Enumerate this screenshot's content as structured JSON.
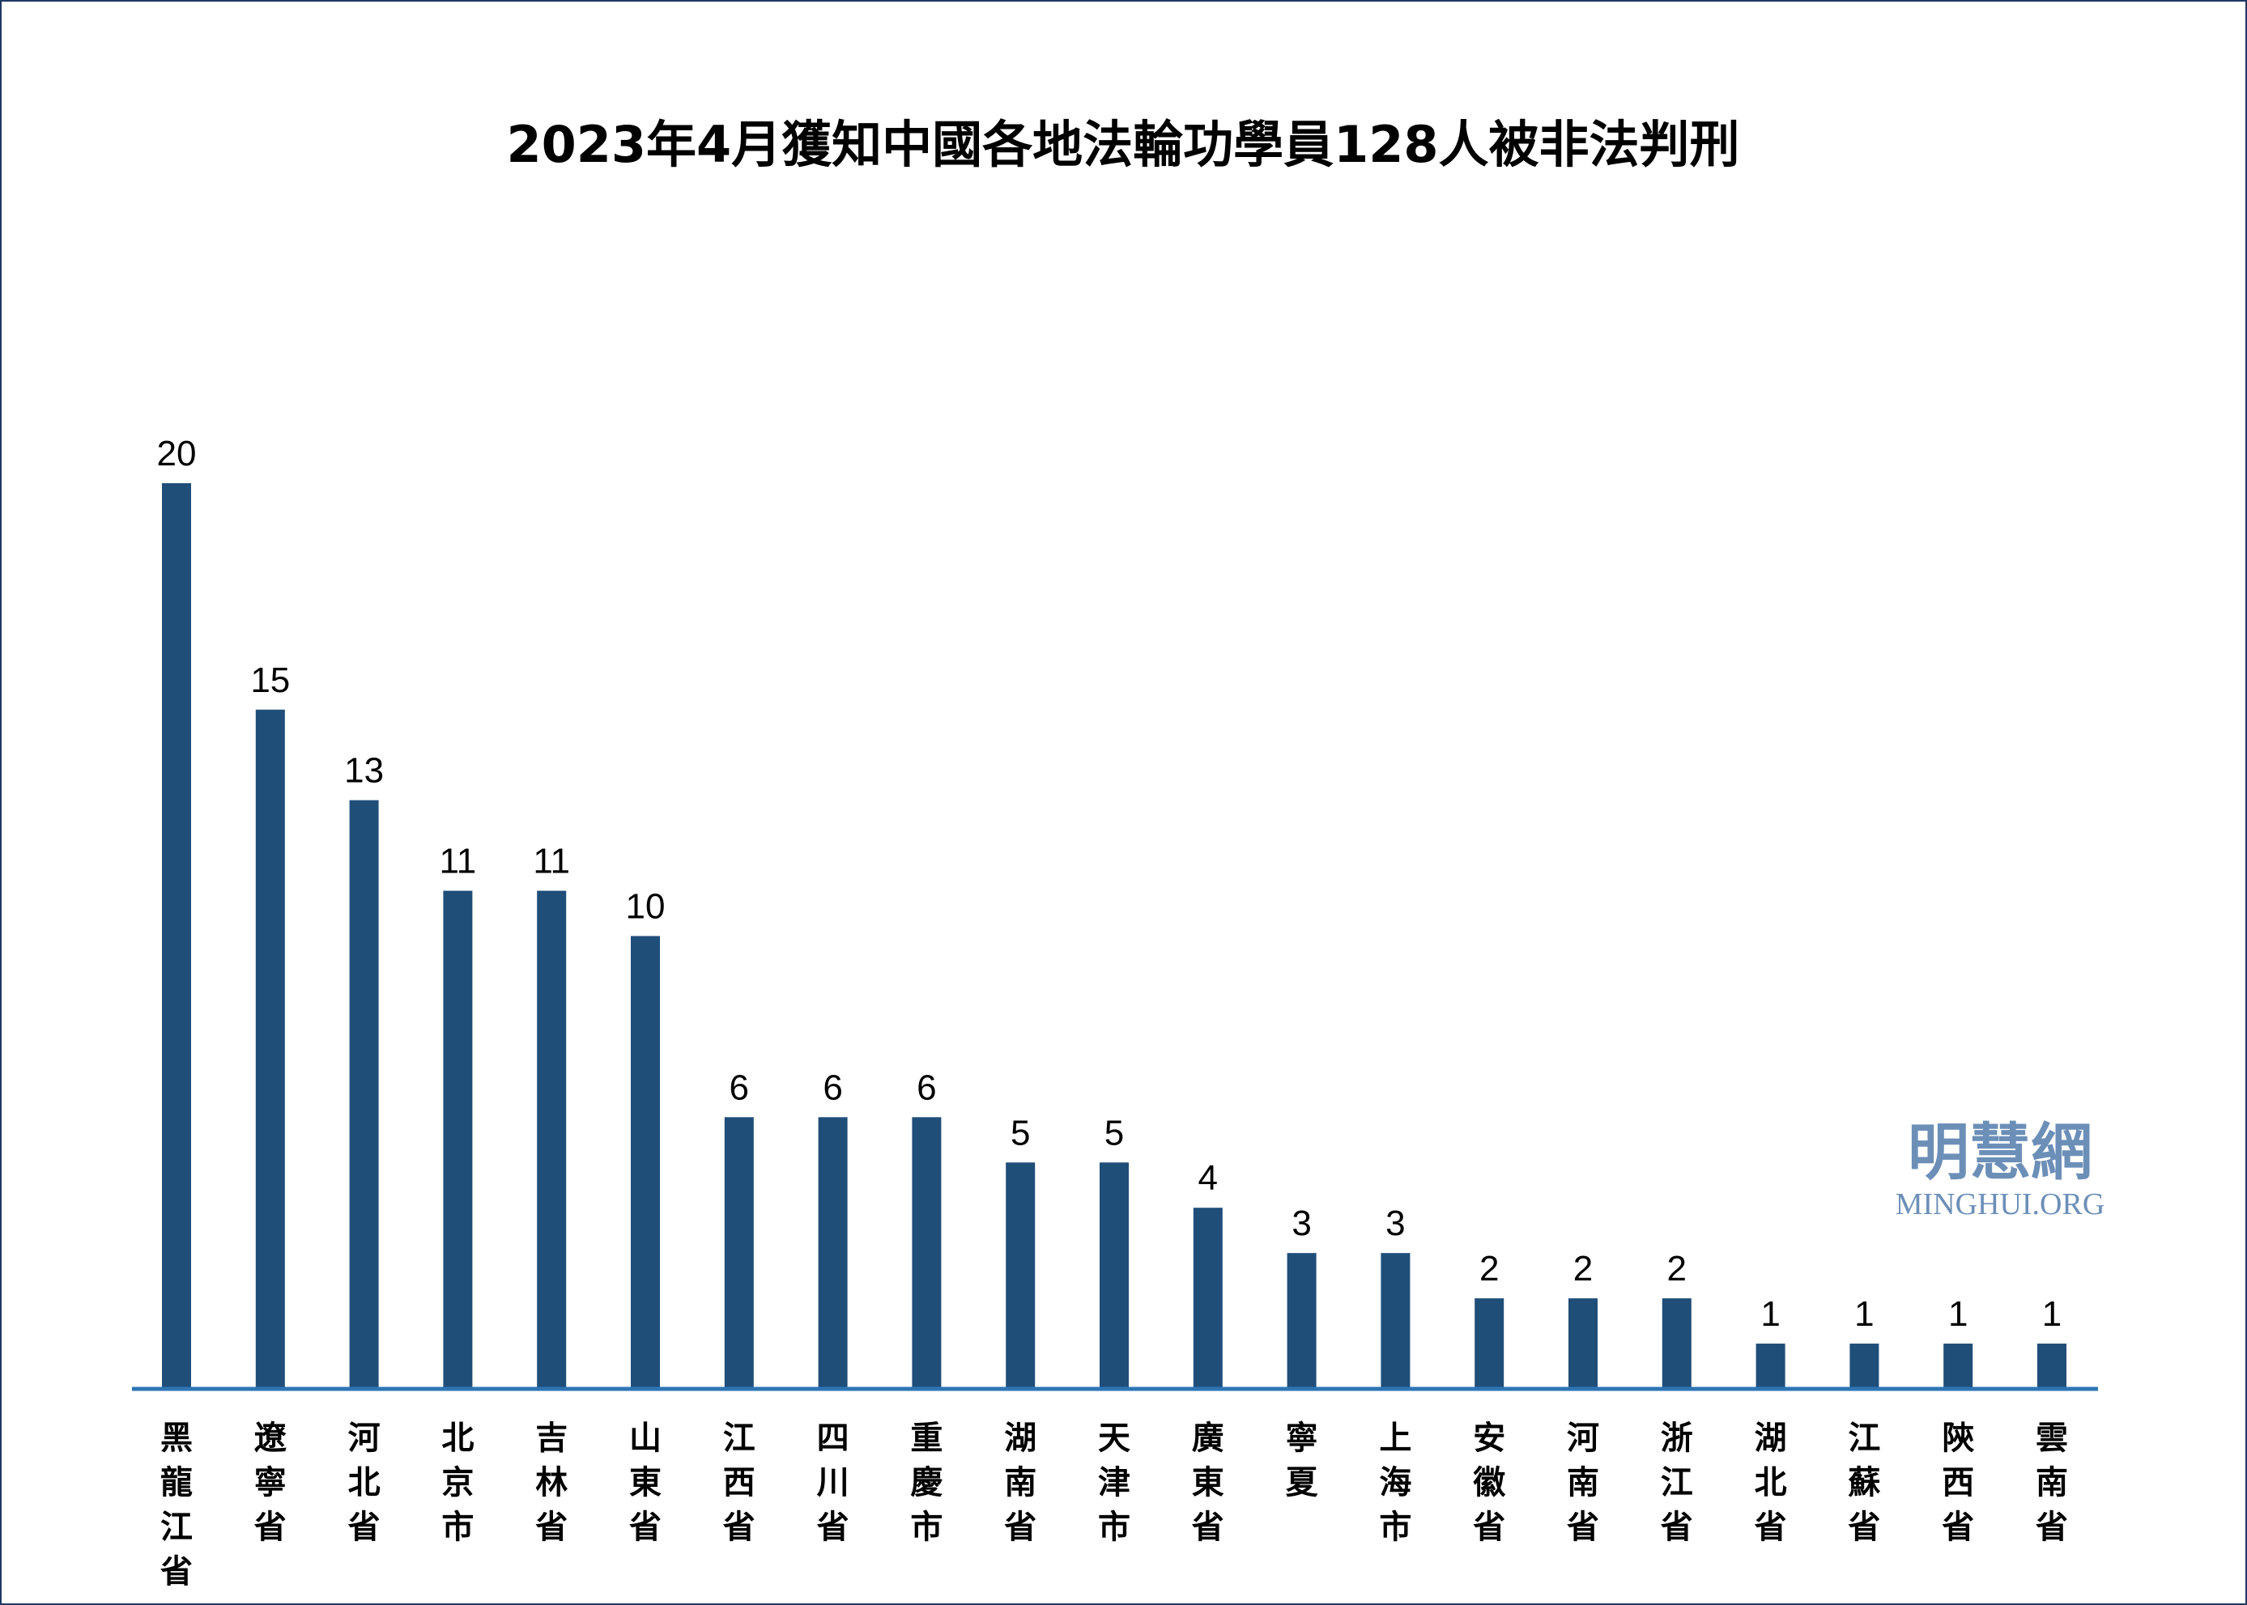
{
  "chart_data": {
    "type": "bar",
    "title": "2023年4月獲知中國各地法輪功學員128人被非法判刑",
    "categories": [
      "黑龍江省",
      "遼寧省",
      "河北省",
      "北京市",
      "吉林省",
      "山東省",
      "江西省",
      "四川省",
      "重慶市",
      "湖南省",
      "天津市",
      "廣東省",
      "寧夏",
      "上海市",
      "安徽省",
      "河南省",
      "浙江省",
      "湖北省",
      "江蘇省",
      "陝西省",
      "雲南省"
    ],
    "values": [
      20,
      15,
      13,
      11,
      11,
      10,
      6,
      6,
      6,
      5,
      5,
      4,
      3,
      3,
      2,
      2,
      2,
      1,
      1,
      1,
      1
    ],
    "ylim": [
      0,
      20
    ],
    "grid": false,
    "data_labels": true,
    "colors": {
      "bar": "#1f4e79",
      "axis": "#2e75b6",
      "frame": "#1f3864",
      "logo": "#6c8fb8"
    }
  },
  "logo": {
    "chinese": "明慧網",
    "english": "MINGHUI.ORG"
  }
}
